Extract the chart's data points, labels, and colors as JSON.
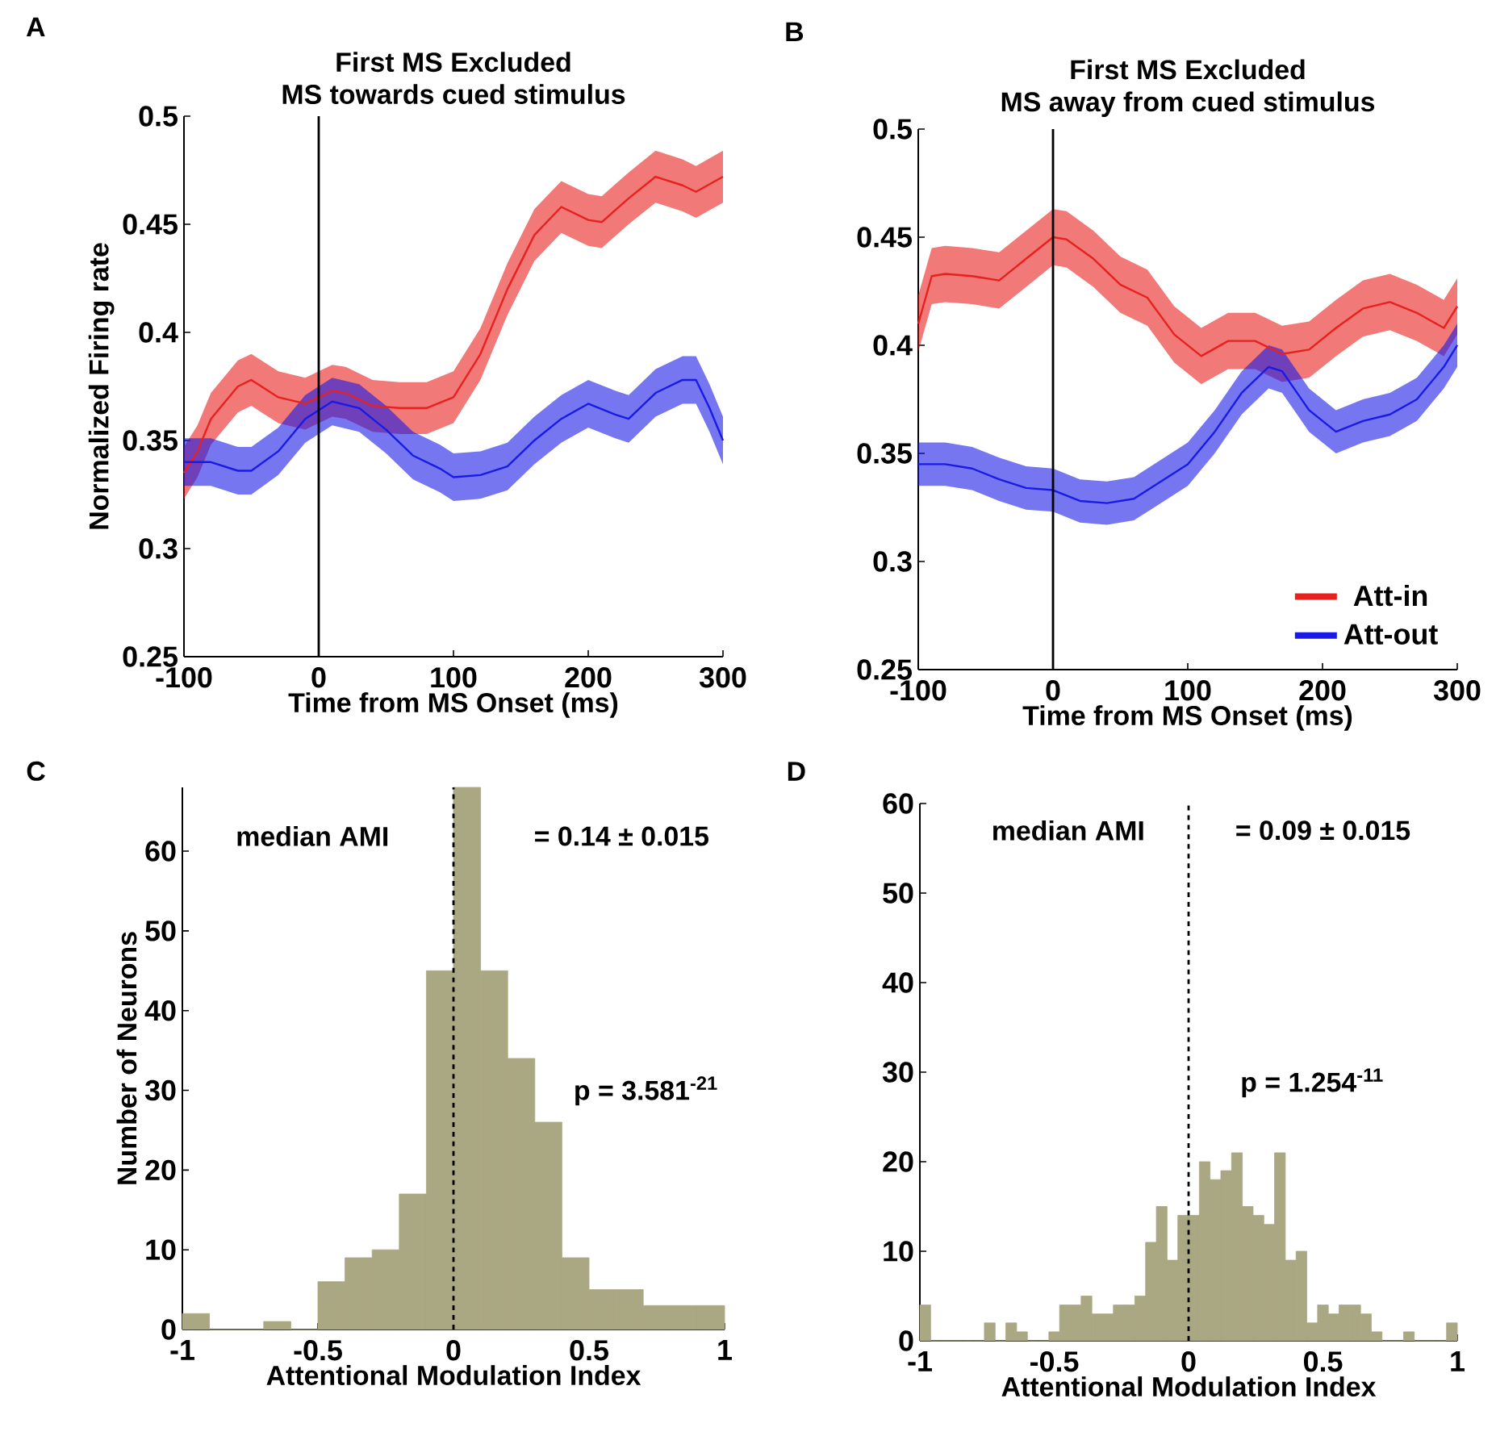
{
  "chart_data": [
    {
      "type": "line",
      "title": "First MS Excluded",
      "subtitle": "MS towards cued stimulus",
      "xlabel": "Time from MS Onset (ms)",
      "ylabel": "Normalized Firing rate",
      "annotations": [
        "A"
      ],
      "xlim": [
        -100,
        300
      ],
      "xticks": [
        -100,
        0,
        100,
        200,
        300
      ],
      "ylim": [
        0.25,
        0.5
      ],
      "yticks": [
        0.25,
        0.3,
        0.35,
        0.4,
        0.45,
        0.5
      ],
      "ref_lines": [
        {
          "axis": "x",
          "value": 0,
          "color": "#000000",
          "line_style": "solid"
        }
      ],
      "series": [
        {
          "color": "#e8201e",
          "x": [
            -100,
            -90,
            -80,
            -60,
            -50,
            -30,
            -10,
            0,
            10,
            20,
            40,
            60,
            80,
            100,
            120,
            140,
            160,
            180,
            200,
            210,
            230,
            250,
            270,
            280,
            300
          ],
          "values": [
            0.335,
            0.345,
            0.36,
            0.375,
            0.378,
            0.37,
            0.367,
            0.37,
            0.373,
            0.372,
            0.366,
            0.365,
            0.365,
            0.37,
            0.39,
            0.42,
            0.445,
            0.458,
            0.452,
            0.451,
            0.462,
            0.472,
            0.468,
            0.465,
            0.472
          ],
          "lower": [
            0.323,
            0.333,
            0.348,
            0.363,
            0.366,
            0.358,
            0.355,
            0.358,
            0.361,
            0.36,
            0.354,
            0.353,
            0.353,
            0.358,
            0.378,
            0.408,
            0.433,
            0.446,
            0.44,
            0.439,
            0.45,
            0.46,
            0.456,
            0.453,
            0.46
          ],
          "upper": [
            0.347,
            0.357,
            0.372,
            0.387,
            0.39,
            0.382,
            0.379,
            0.382,
            0.385,
            0.384,
            0.378,
            0.377,
            0.377,
            0.382,
            0.402,
            0.432,
            0.457,
            0.47,
            0.464,
            0.463,
            0.474,
            0.484,
            0.48,
            0.477,
            0.484
          ]
        },
        {
          "color": "#1a1ae6",
          "x": [
            -100,
            -80,
            -60,
            -50,
            -30,
            -10,
            10,
            30,
            50,
            70,
            90,
            100,
            120,
            140,
            160,
            180,
            200,
            220,
            230,
            250,
            270,
            280,
            290,
            300
          ],
          "values": [
            0.34,
            0.34,
            0.336,
            0.336,
            0.345,
            0.36,
            0.368,
            0.365,
            0.355,
            0.343,
            0.337,
            0.333,
            0.334,
            0.338,
            0.35,
            0.36,
            0.367,
            0.362,
            0.36,
            0.372,
            0.378,
            0.378,
            0.365,
            0.35
          ],
          "lower": [
            0.329,
            0.329,
            0.325,
            0.325,
            0.334,
            0.349,
            0.357,
            0.354,
            0.344,
            0.332,
            0.326,
            0.322,
            0.323,
            0.327,
            0.339,
            0.349,
            0.356,
            0.351,
            0.349,
            0.361,
            0.367,
            0.367,
            0.354,
            0.339
          ],
          "upper": [
            0.351,
            0.351,
            0.347,
            0.347,
            0.356,
            0.371,
            0.379,
            0.376,
            0.366,
            0.354,
            0.348,
            0.344,
            0.345,
            0.349,
            0.361,
            0.371,
            0.378,
            0.373,
            0.371,
            0.383,
            0.389,
            0.389,
            0.376,
            0.361
          ]
        }
      ]
    },
    {
      "type": "line",
      "title": "First MS Excluded",
      "subtitle": "MS away from cued stimulus",
      "xlabel": "Time from MS Onset (ms)",
      "annotations": [
        "B"
      ],
      "legend": "bottom right",
      "xlim": [
        -100,
        300
      ],
      "xticks": [
        -100,
        0,
        100,
        200,
        300
      ],
      "ylim": [
        0.25,
        0.5
      ],
      "yticks": [
        0.25,
        0.3,
        0.35,
        0.4,
        0.45,
        0.5
      ],
      "ref_lines": [
        {
          "axis": "x",
          "value": 0,
          "color": "#000000",
          "line_style": "solid"
        }
      ],
      "series": [
        {
          "name": "Att-in",
          "color": "#e8201e",
          "x": [
            -100,
            -90,
            -80,
            -60,
            -40,
            -20,
            0,
            10,
            30,
            50,
            70,
            90,
            110,
            130,
            150,
            170,
            190,
            210,
            230,
            250,
            270,
            290,
            300
          ],
          "values": [
            0.41,
            0.432,
            0.433,
            0.432,
            0.43,
            0.44,
            0.45,
            0.449,
            0.44,
            0.428,
            0.422,
            0.405,
            0.395,
            0.402,
            0.402,
            0.396,
            0.398,
            0.408,
            0.417,
            0.42,
            0.415,
            0.408,
            0.418
          ],
          "lower": [
            0.397,
            0.419,
            0.42,
            0.419,
            0.417,
            0.427,
            0.437,
            0.436,
            0.427,
            0.415,
            0.409,
            0.392,
            0.382,
            0.389,
            0.389,
            0.383,
            0.385,
            0.395,
            0.404,
            0.407,
            0.402,
            0.395,
            0.405
          ],
          "upper": [
            0.423,
            0.445,
            0.446,
            0.445,
            0.443,
            0.453,
            0.463,
            0.462,
            0.453,
            0.441,
            0.435,
            0.418,
            0.408,
            0.415,
            0.415,
            0.409,
            0.411,
            0.421,
            0.43,
            0.433,
            0.428,
            0.421,
            0.431
          ]
        },
        {
          "name": "Att-out",
          "color": "#1a1ae6",
          "x": [
            -100,
            -80,
            -60,
            -40,
            -20,
            0,
            20,
            40,
            60,
            80,
            100,
            120,
            140,
            160,
            170,
            190,
            210,
            230,
            250,
            270,
            290,
            300
          ],
          "values": [
            0.345,
            0.345,
            0.343,
            0.338,
            0.334,
            0.333,
            0.328,
            0.327,
            0.329,
            0.337,
            0.345,
            0.36,
            0.378,
            0.39,
            0.388,
            0.37,
            0.36,
            0.365,
            0.368,
            0.375,
            0.39,
            0.4
          ],
          "lower": [
            0.335,
            0.335,
            0.333,
            0.328,
            0.324,
            0.323,
            0.318,
            0.317,
            0.319,
            0.327,
            0.335,
            0.35,
            0.368,
            0.38,
            0.378,
            0.36,
            0.35,
            0.355,
            0.358,
            0.365,
            0.38,
            0.39
          ],
          "upper": [
            0.355,
            0.355,
            0.353,
            0.348,
            0.344,
            0.343,
            0.338,
            0.337,
            0.339,
            0.347,
            0.355,
            0.37,
            0.388,
            0.4,
            0.398,
            0.38,
            0.37,
            0.375,
            0.378,
            0.385,
            0.4,
            0.41
          ]
        }
      ]
    },
    {
      "type": "histogram",
      "xlabel": "Attentional Modulation Index",
      "ylabel": "Number of Neurons",
      "annotations": [
        "C",
        "median AMI",
        "= 0.14 ± 0.015",
        "p = 3.581$^{-21}$"
      ],
      "color": "#aaa783",
      "xlim": [
        -1,
        1
      ],
      "xticks": [
        -1,
        -0.5,
        0,
        0.5,
        1
      ],
      "ylim": [
        0,
        68
      ],
      "yticks": [
        0,
        10,
        20,
        30,
        40,
        50,
        60
      ],
      "ref_lines": [
        {
          "axis": "x",
          "value": 0,
          "color": "#000000",
          "line_style": "dashed"
        }
      ],
      "bins": [
        -1,
        -0.9,
        -0.8,
        -0.7,
        -0.6,
        -0.5,
        -0.4,
        -0.3,
        -0.2,
        -0.1,
        0,
        0.1,
        0.2,
        0.3,
        0.4,
        0.5,
        0.6,
        0.7,
        0.8,
        0.9,
        1
      ],
      "values": [
        2,
        0,
        0,
        1,
        0,
        6,
        9,
        10,
        17,
        45,
        68,
        45,
        34,
        26,
        9,
        5,
        5,
        3,
        3,
        3
      ]
    },
    {
      "type": "histogram",
      "xlabel": "Attentional Modulation Index",
      "annotations": [
        "D",
        "median AMI",
        "= 0.09 ± 0.015",
        "p = 1.254$^{-11}$"
      ],
      "color": "#aaa783",
      "xlim": [
        -1,
        1
      ],
      "xticks": [
        -1,
        -0.5,
        0,
        0.5,
        1
      ],
      "ylim": [
        0,
        60
      ],
      "yticks": [
        0,
        10,
        20,
        30,
        40,
        50,
        60
      ],
      "ref_lines": [
        {
          "axis": "x",
          "value": 0,
          "color": "#000000",
          "line_style": "dashed"
        }
      ],
      "bins": [
        -1,
        -0.96,
        -0.92,
        -0.88,
        -0.84,
        -0.8,
        -0.76,
        -0.72,
        -0.68,
        -0.64,
        -0.6,
        -0.56,
        -0.52,
        -0.48,
        -0.44,
        -0.4,
        -0.36,
        -0.32,
        -0.28,
        -0.24,
        -0.2,
        -0.16,
        -0.12,
        -0.08,
        -0.04,
        0,
        0.04,
        0.08,
        0.12,
        0.16,
        0.2,
        0.24,
        0.28,
        0.32,
        0.36,
        0.4,
        0.44,
        0.48,
        0.52,
        0.56,
        0.6,
        0.64,
        0.68,
        0.72,
        0.76,
        0.8,
        0.84,
        0.88,
        0.92,
        0.96,
        1
      ],
      "values": [
        4,
        0,
        0,
        0,
        0,
        0,
        2,
        0,
        2,
        1,
        0,
        0,
        1,
        4,
        4,
        5,
        3,
        3,
        4,
        4,
        5,
        11,
        15,
        9,
        14,
        14,
        20,
        18,
        19,
        21,
        15,
        14,
        13,
        21,
        9,
        10,
        2,
        4,
        3,
        4,
        4,
        3,
        1,
        0,
        0,
        1,
        0,
        0,
        0,
        2
      ]
    }
  ]
}
